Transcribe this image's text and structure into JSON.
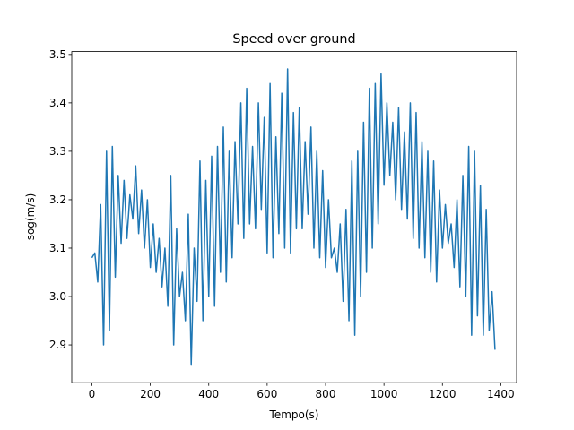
{
  "chart_data": {
    "type": "line",
    "title": "Speed over ground",
    "x_label": "Tempo(s)",
    "y_label": "sog(m/s)",
    "x": [
      0,
      10,
      20,
      30,
      40,
      50,
      60,
      70,
      80,
      90,
      100,
      110,
      120,
      130,
      140,
      150,
      160,
      170,
      180,
      190,
      200,
      210,
      220,
      230,
      240,
      250,
      260,
      270,
      280,
      290,
      300,
      310,
      320,
      330,
      340,
      350,
      360,
      370,
      380,
      390,
      400,
      410,
      420,
      430,
      440,
      450,
      460,
      470,
      480,
      490,
      500,
      510,
      520,
      530,
      540,
      550,
      560,
      570,
      580,
      590,
      600,
      610,
      620,
      630,
      640,
      650,
      660,
      670,
      680,
      690,
      700,
      710,
      720,
      730,
      740,
      750,
      760,
      770,
      780,
      790,
      800,
      810,
      820,
      830,
      840,
      850,
      860,
      870,
      880,
      890,
      900,
      910,
      920,
      930,
      940,
      950,
      960,
      970,
      980,
      990,
      1000,
      1010,
      1020,
      1030,
      1040,
      1050,
      1060,
      1070,
      1080,
      1090,
      1100,
      1110,
      1120,
      1130,
      1140,
      1150,
      1160,
      1170,
      1180,
      1190,
      1200,
      1210,
      1220,
      1230,
      1240,
      1250,
      1260,
      1270,
      1280,
      1290,
      1300,
      1310,
      1320,
      1330,
      1340,
      1350,
      1360,
      1370,
      1380
    ],
    "series": [
      {
        "color": "#1f77b4",
        "values": [
          3.08,
          3.09,
          3.03,
          3.19,
          2.9,
          3.3,
          2.93,
          3.31,
          3.04,
          3.25,
          3.11,
          3.24,
          3.12,
          3.21,
          3.16,
          3.27,
          3.13,
          3.22,
          3.1,
          3.2,
          3.06,
          3.15,
          3.05,
          3.12,
          3.02,
          3.1,
          2.98,
          3.25,
          2.9,
          3.14,
          3.0,
          3.05,
          2.95,
          3.17,
          2.86,
          3.1,
          2.99,
          3.28,
          2.95,
          3.24,
          3.0,
          3.29,
          2.98,
          3.31,
          3.05,
          3.35,
          3.03,
          3.3,
          3.08,
          3.32,
          3.15,
          3.4,
          3.12,
          3.43,
          3.15,
          3.31,
          3.14,
          3.4,
          3.18,
          3.37,
          3.09,
          3.44,
          3.08,
          3.33,
          3.13,
          3.42,
          3.1,
          3.47,
          3.09,
          3.38,
          3.14,
          3.39,
          3.14,
          3.32,
          3.17,
          3.35,
          3.1,
          3.3,
          3.08,
          3.26,
          3.06,
          3.2,
          3.08,
          3.1,
          3.05,
          3.15,
          2.99,
          3.18,
          2.95,
          3.28,
          2.92,
          3.3,
          3.0,
          3.36,
          3.05,
          3.43,
          3.1,
          3.44,
          3.15,
          3.46,
          3.23,
          3.4,
          3.25,
          3.36,
          3.2,
          3.39,
          3.18,
          3.34,
          3.16,
          3.4,
          3.12,
          3.38,
          3.1,
          3.32,
          3.08,
          3.3,
          3.05,
          3.28,
          3.03,
          3.22,
          3.1,
          3.19,
          3.11,
          3.15,
          3.06,
          3.2,
          3.02,
          3.25,
          3.0,
          3.31,
          2.92,
          3.3,
          2.96,
          3.23,
          2.92,
          3.18,
          2.93,
          3.01,
          2.89
        ]
      }
    ],
    "xlim": [
      -69,
      1454
    ],
    "ylim": [
      2.822,
      3.506
    ],
    "xticks": [
      0,
      200,
      400,
      600,
      800,
      1000,
      1200,
      1400
    ],
    "yticks": [
      2.9,
      {
        "value": 3,
        "label": "3.0"
      },
      3.1,
      3.2,
      3.3,
      3.4,
      3.5
    ]
  }
}
